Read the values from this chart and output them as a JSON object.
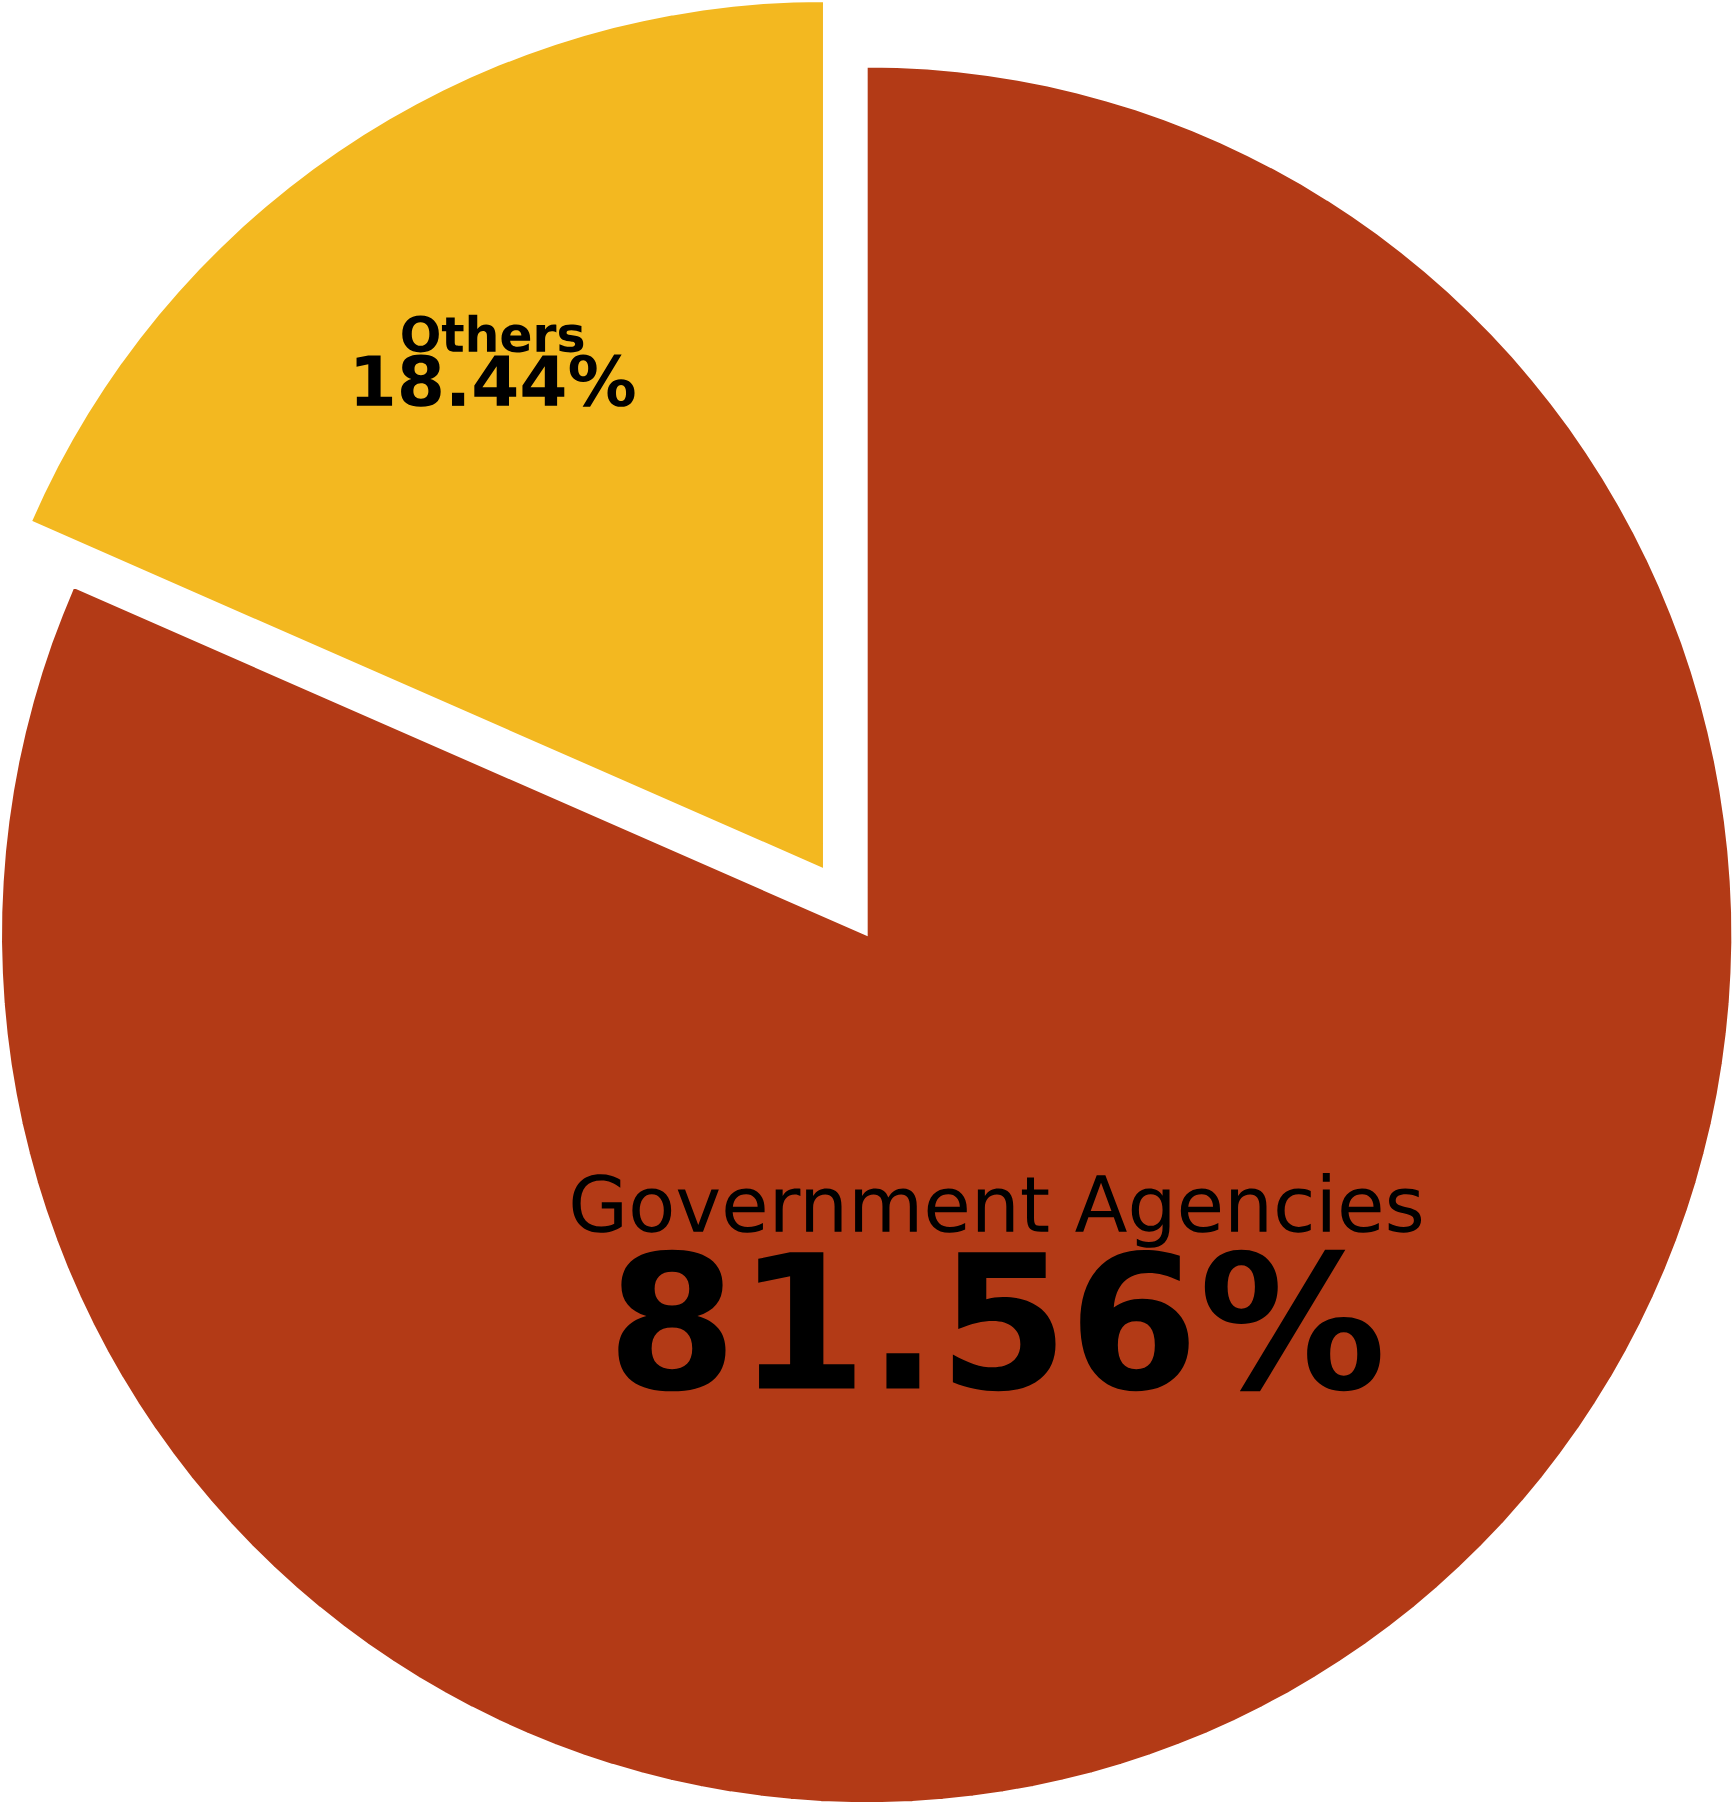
{
  "chart_data": {
    "type": "pie",
    "categories": [
      "Government Agencies",
      "Others"
    ],
    "values": [
      81.56,
      18.44
    ],
    "value_labels": [
      "81.56%",
      "18.44%"
    ],
    "colors": [
      "#b33a16",
      "#f3b820"
    ]
  }
}
